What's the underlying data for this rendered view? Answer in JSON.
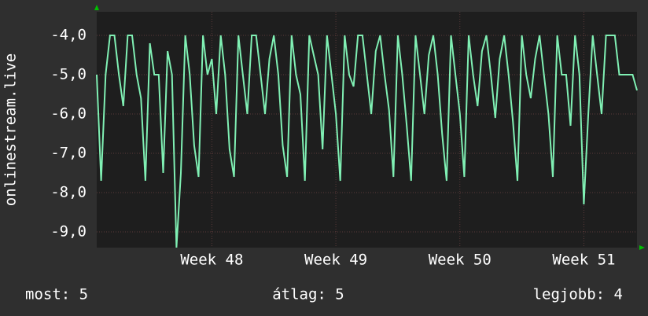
{
  "chart_data": {
    "type": "line",
    "y_label": "onlinestream.live",
    "x": [
      0,
      0.25,
      0.5,
      0.75,
      1,
      1.25,
      1.5,
      1.75,
      2,
      2.25,
      2.5,
      2.75,
      3,
      3.25,
      3.5,
      3.75,
      4,
      4.25,
      4.5,
      4.75,
      5,
      5.25,
      5.5,
      5.75,
      6,
      6.25,
      6.5,
      6.75,
      7,
      7.25,
      7.5,
      7.75,
      8,
      8.25,
      8.5,
      8.75,
      9,
      9.25,
      9.5,
      9.75,
      10,
      10.25,
      10.5,
      10.75,
      11,
      11.25,
      11.5,
      11.75,
      12,
      12.25,
      12.5,
      12.75,
      13,
      13.25,
      13.5,
      13.75,
      14,
      14.25,
      14.5,
      14.75,
      15,
      15.25,
      15.5,
      15.75,
      16,
      16.25,
      16.5,
      16.75,
      17,
      17.25,
      17.5,
      17.75,
      18,
      18.25,
      18.5,
      18.75,
      19,
      19.25,
      19.5,
      19.75,
      20,
      20.25,
      20.5,
      20.75,
      21,
      21.25,
      21.5,
      21.75,
      22,
      22.25,
      22.5,
      22.75,
      23,
      23.25,
      23.5,
      23.75,
      24,
      24.25,
      24.5,
      24.75,
      25,
      25.25,
      25.5,
      25.75,
      26,
      26.25,
      26.5,
      26.75,
      27,
      27.25,
      27.5,
      27.75,
      28,
      28.25,
      28.5,
      28.75,
      29,
      29.25,
      29.5,
      29.75,
      30,
      30.25,
      30.5
    ],
    "series": [
      {
        "color": "#80f0b4",
        "values": [
          -5,
          -7.7,
          -5,
          -4,
          -4,
          -5,
          -5.8,
          -4,
          -4,
          -5,
          -5.6,
          -7.7,
          -4.2,
          -5,
          -5,
          -7.5,
          -4.4,
          -5,
          -9.4,
          -7.5,
          -4,
          -5,
          -6.8,
          -7.6,
          -4,
          -5,
          -4.6,
          -6,
          -4,
          -5,
          -6.9,
          -7.6,
          -4,
          -5,
          -6,
          -4,
          -4,
          -5,
          -6,
          -4.6,
          -4,
          -5,
          -6.8,
          -7.6,
          -4,
          -5,
          -5.5,
          -7.7,
          -4,
          -4.5,
          -5,
          -6.9,
          -4,
          -5,
          -6,
          -7.7,
          -4,
          -5,
          -5.3,
          -4,
          -4,
          -5,
          -6,
          -4.4,
          -4,
          -5,
          -5.9,
          -7.6,
          -4,
          -5,
          -6.3,
          -7.7,
          -4,
          -5,
          -6,
          -4.5,
          -4,
          -5,
          -6.5,
          -7.7,
          -4,
          -5,
          -6,
          -7.6,
          -4,
          -5,
          -5.8,
          -4.4,
          -4,
          -5,
          -6.1,
          -4.6,
          -4,
          -5,
          -6.2,
          -7.7,
          -4,
          -5,
          -5.6,
          -4.6,
          -4,
          -5,
          -6,
          -7.6,
          -4,
          -5,
          -5,
          -6.3,
          -4,
          -5,
          -8.3,
          -6,
          -4,
          -5,
          -6,
          -4,
          -4,
          -4,
          -5,
          -5,
          -5,
          -5,
          -5.4
        ]
      }
    ],
    "xlim": [
      0,
      30.5
    ],
    "xticks": [
      {
        "value": 6.5,
        "label": "Week 48"
      },
      {
        "value": 13.5,
        "label": "Week 49"
      },
      {
        "value": 20.5,
        "label": "Week 50"
      },
      {
        "value": 27.5,
        "label": "Week 51"
      }
    ],
    "ylim": [
      -9.4,
      -3.4
    ],
    "yticks": [
      {
        "value": -4,
        "label": "-4,0"
      },
      {
        "value": -5,
        "label": "-5,0"
      },
      {
        "value": -6,
        "label": "-6,0"
      },
      {
        "value": -7,
        "label": "-7,0"
      },
      {
        "value": -8,
        "label": "-8,0"
      },
      {
        "value": -9,
        "label": "-9,0"
      }
    ],
    "grid": true,
    "annotations": [
      "most: 5",
      "átlag: 5",
      "legjobb: 4"
    ]
  }
}
